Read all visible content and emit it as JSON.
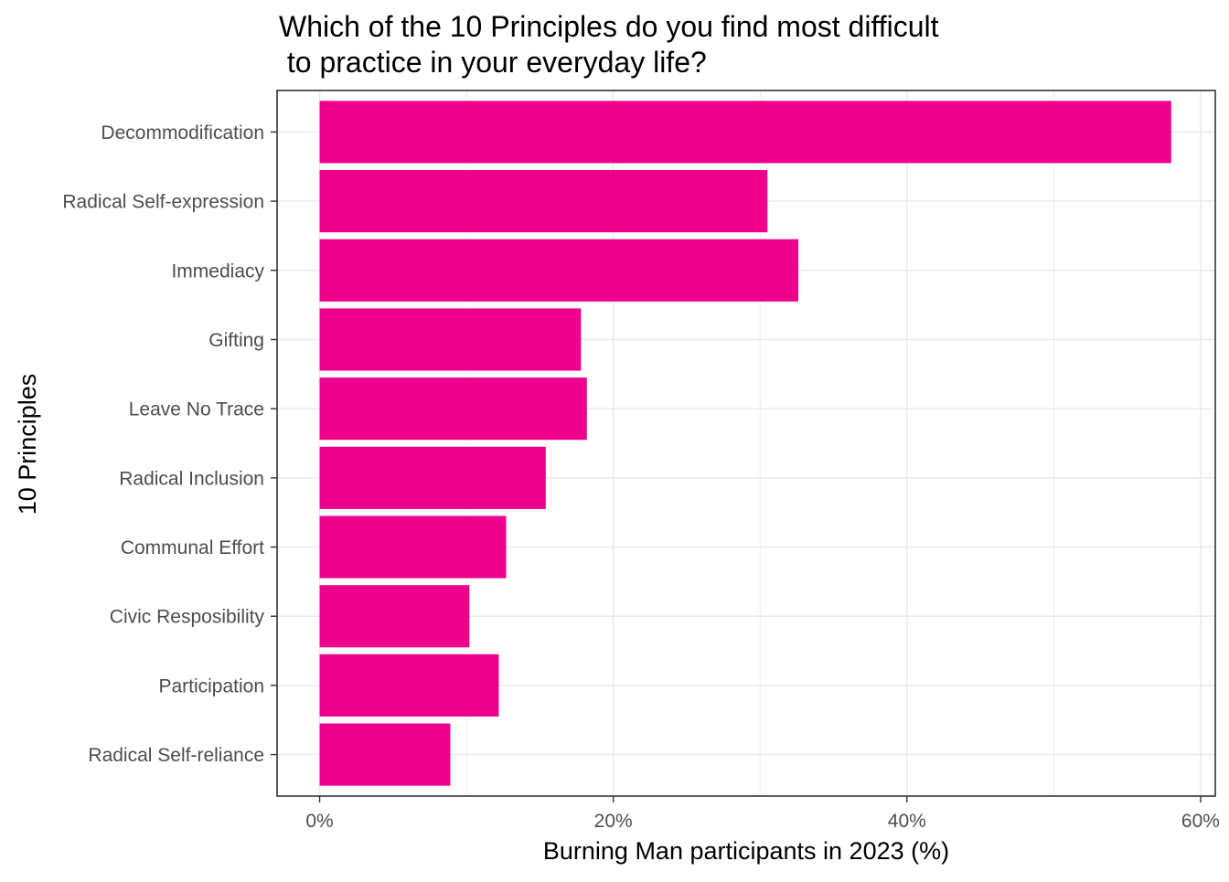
{
  "chart_data": {
    "type": "bar",
    "orientation": "horizontal",
    "title_lines": [
      "Which of the 10 Principles do you find most difficult",
      " to practice in your everyday life?"
    ],
    "xlabel": "Burning Man participants in 2023 (%)",
    "ylabel": "10 Principles",
    "categories": [
      "Decommodification",
      "Radical Self-expression",
      "Immediacy",
      "Gifting",
      "Leave No Trace",
      "Radical Inclusion",
      "Communal Effort",
      "Civic Resposibility",
      "Participation",
      "Radical Self-reliance"
    ],
    "values": [
      58.0,
      30.5,
      32.6,
      17.8,
      18.2,
      15.4,
      12.7,
      10.2,
      12.2,
      8.9
    ],
    "xlim": [
      -2.9,
      61.0
    ],
    "x_ticks": [
      0,
      20,
      40,
      60
    ],
    "x_tick_labels": [
      "0%",
      "20%",
      "40%",
      "60%"
    ],
    "bar_color": "#EC008C",
    "grid": true,
    "legend": "none"
  }
}
